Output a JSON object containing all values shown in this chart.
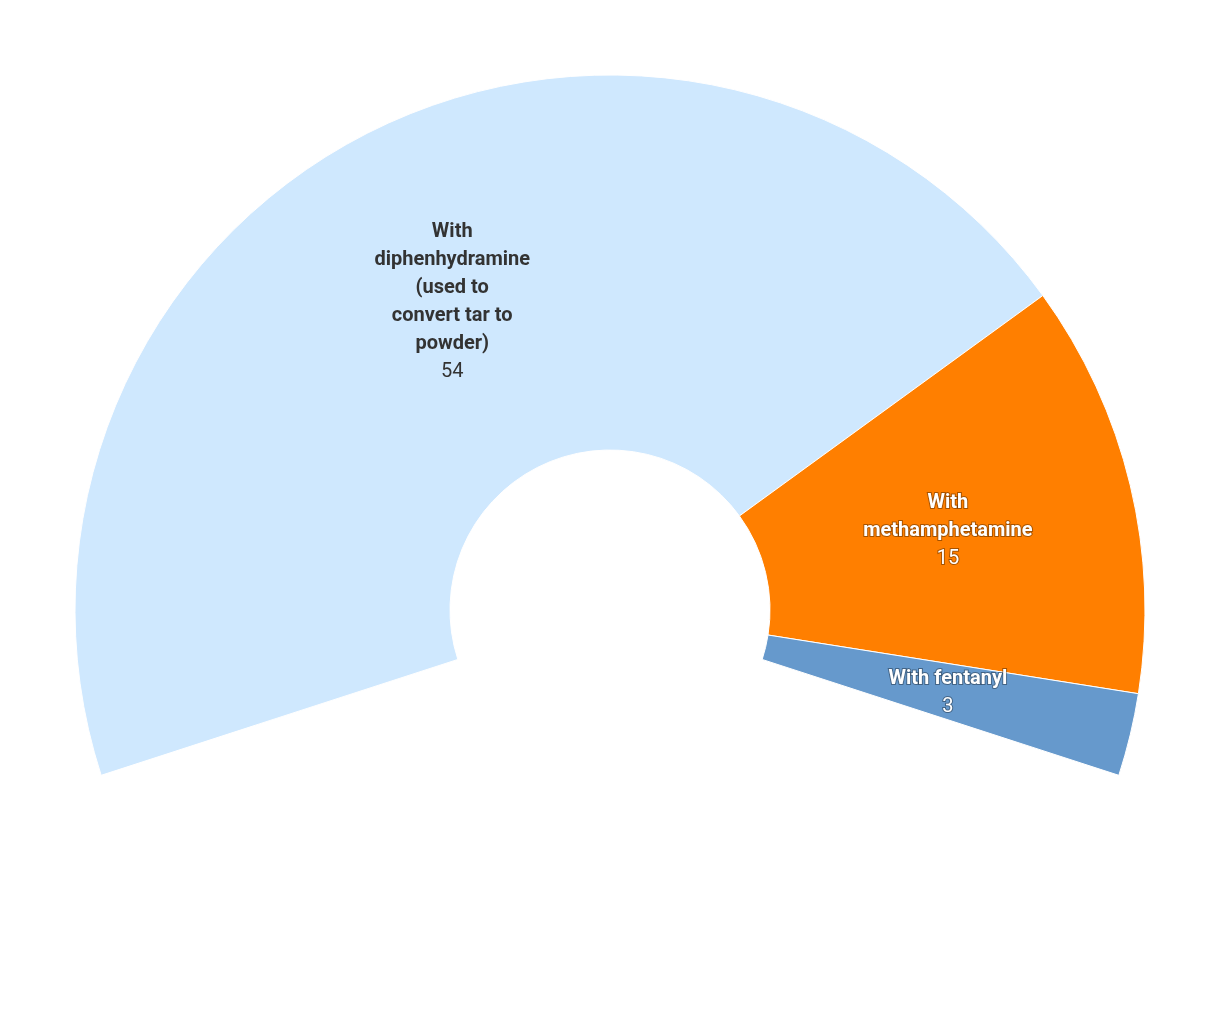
{
  "chart_data": {
    "type": "donut",
    "categories": [
      "With diphenhydramine (used to convert tar to powder)",
      "With methamphetamine",
      "With fentanyl"
    ],
    "values": [
      54,
      15,
      3
    ],
    "colors": [
      "#cfe8fe",
      "#ff7f00",
      "#6699cc"
    ],
    "data_labels": true
  }
}
